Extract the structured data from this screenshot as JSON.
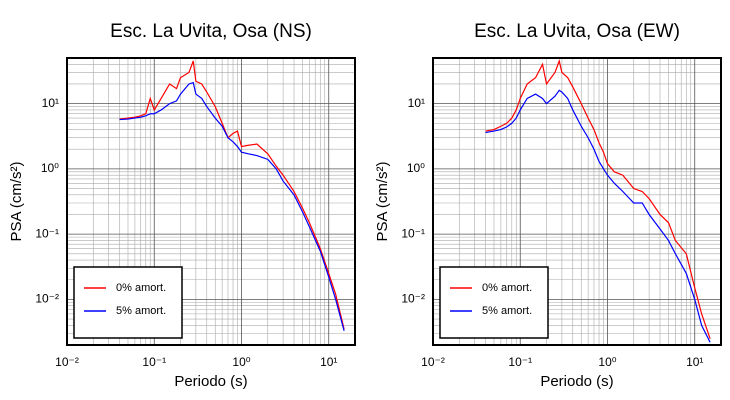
{
  "chart_data": [
    {
      "type": "line",
      "title": "Esc. La Uvita, Osa (NS)",
      "x_label": "Periodo (s)",
      "y_label": "PSA (cm/s²)",
      "xscale": "log",
      "yscale": "log",
      "grid": true,
      "legend": "lower left",
      "xlim": [
        0.01,
        20
      ],
      "ylim": [
        0.002,
        50
      ],
      "xticks": [
        {
          "value": 0.01,
          "label": "10⁻²"
        },
        {
          "value": 0.1,
          "label": "10⁻¹"
        },
        {
          "value": 1,
          "label": "10⁰"
        },
        {
          "value": 10,
          "label": "10¹"
        }
      ],
      "yticks": [
        {
          "value": 0.01,
          "label": "10⁻²"
        },
        {
          "value": 0.1,
          "label": "10⁻¹"
        },
        {
          "value": 1,
          "label": "10⁰"
        },
        {
          "value": 10,
          "label": "10¹"
        }
      ],
      "xminor": [
        0.02,
        0.03,
        0.04,
        0.05,
        0.06,
        0.07,
        0.08,
        0.09,
        0.2,
        0.3,
        0.4,
        0.5,
        0.6,
        0.7,
        0.8,
        0.9,
        2,
        3,
        4,
        5,
        6,
        7,
        8,
        9
      ],
      "yminor": [
        0.003,
        0.004,
        0.005,
        0.006,
        0.007,
        0.008,
        0.009,
        0.02,
        0.03,
        0.04,
        0.05,
        0.06,
        0.07,
        0.08,
        0.09,
        0.2,
        0.3,
        0.4,
        0.5,
        0.6,
        0.7,
        0.8,
        0.9,
        2,
        3,
        4,
        5,
        6,
        7,
        8,
        9,
        20,
        30,
        40
      ],
      "x": [
        0.04,
        0.05,
        0.06,
        0.07,
        0.08,
        0.09,
        0.1,
        0.12,
        0.15,
        0.18,
        0.2,
        0.25,
        0.28,
        0.3,
        0.35,
        0.4,
        0.5,
        0.6,
        0.7,
        0.8,
        0.9,
        1,
        1.2,
        1.5,
        2,
        2.5,
        3,
        4,
        5,
        6,
        8,
        10,
        12,
        15
      ],
      "series": [
        {
          "name": "0% amort.",
          "color": "#ff0000",
          "values": [
            5.8,
            6,
            6.2,
            6.5,
            7,
            12,
            8,
            12,
            20,
            17,
            25,
            30,
            45,
            22,
            20,
            15,
            9,
            5,
            3,
            3.5,
            3.8,
            2.2,
            2.3,
            2.4,
            1.7,
            1.1,
            0.8,
            0.45,
            0.25,
            0.15,
            0.06,
            0.025,
            0.012,
            0.0035
          ]
        },
        {
          "name": "5% amort.",
          "color": "#0000ff",
          "values": [
            5.7,
            5.8,
            6,
            6.2,
            6.5,
            7,
            7,
            8,
            10,
            11,
            14,
            20,
            21,
            14,
            12,
            9,
            6,
            4.5,
            3,
            2.6,
            2.2,
            1.8,
            1.7,
            1.6,
            1.4,
            1,
            0.65,
            0.4,
            0.22,
            0.13,
            0.055,
            0.022,
            0.01,
            0.0033
          ]
        }
      ]
    },
    {
      "type": "line",
      "title": "Esc. La Uvita, Osa (EW)",
      "x_label": "Periodo (s)",
      "y_label": "PSA (cm/s²)",
      "xscale": "log",
      "yscale": "log",
      "grid": true,
      "legend": "lower left",
      "xlim": [
        0.01,
        20
      ],
      "ylim": [
        0.002,
        50
      ],
      "xticks": [
        {
          "value": 0.01,
          "label": "10⁻²"
        },
        {
          "value": 0.1,
          "label": "10⁻¹"
        },
        {
          "value": 1,
          "label": "10⁰"
        },
        {
          "value": 10,
          "label": "10¹"
        }
      ],
      "yticks": [
        {
          "value": 0.01,
          "label": "10⁻²"
        },
        {
          "value": 0.1,
          "label": "10⁻¹"
        },
        {
          "value": 1,
          "label": "10⁰"
        },
        {
          "value": 10,
          "label": "10¹"
        }
      ],
      "xminor": [
        0.02,
        0.03,
        0.04,
        0.05,
        0.06,
        0.07,
        0.08,
        0.09,
        0.2,
        0.3,
        0.4,
        0.5,
        0.6,
        0.7,
        0.8,
        0.9,
        2,
        3,
        4,
        5,
        6,
        7,
        8,
        9
      ],
      "yminor": [
        0.003,
        0.004,
        0.005,
        0.006,
        0.007,
        0.008,
        0.009,
        0.02,
        0.03,
        0.04,
        0.05,
        0.06,
        0.07,
        0.08,
        0.09,
        0.2,
        0.3,
        0.4,
        0.5,
        0.6,
        0.7,
        0.8,
        0.9,
        2,
        3,
        4,
        5,
        6,
        7,
        8,
        9,
        20,
        30,
        40
      ],
      "x": [
        0.04,
        0.05,
        0.06,
        0.07,
        0.08,
        0.09,
        0.1,
        0.12,
        0.15,
        0.18,
        0.2,
        0.25,
        0.28,
        0.3,
        0.35,
        0.4,
        0.5,
        0.6,
        0.7,
        0.8,
        0.9,
        1,
        1.2,
        1.5,
        2,
        2.5,
        3,
        4,
        5,
        6,
        8,
        10,
        12,
        15
      ],
      "series": [
        {
          "name": "0% amort.",
          "color": "#ff0000",
          "values": [
            3.8,
            4,
            4.5,
            5,
            6,
            8,
            12,
            20,
            25,
            40,
            20,
            30,
            45,
            30,
            25,
            18,
            10,
            6,
            4,
            2.5,
            1.8,
            1.2,
            0.9,
            0.8,
            0.5,
            0.45,
            0.35,
            0.2,
            0.15,
            0.08,
            0.05,
            0.015,
            0.006,
            0.0025
          ]
        },
        {
          "name": "5% amort.",
          "color": "#0000ff",
          "values": [
            3.6,
            3.8,
            4,
            4.4,
            5,
            6,
            8,
            12,
            14,
            12,
            10,
            13,
            16,
            15,
            12,
            8,
            4.5,
            3,
            2,
            1.3,
            1,
            0.8,
            0.6,
            0.45,
            0.3,
            0.3,
            0.2,
            0.12,
            0.08,
            0.05,
            0.025,
            0.01,
            0.004,
            0.0022
          ]
        }
      ]
    }
  ]
}
